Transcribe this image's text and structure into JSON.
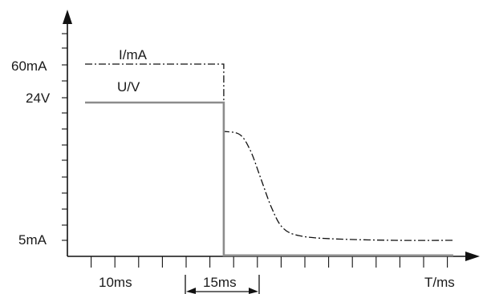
{
  "chart_data": {
    "type": "line",
    "xlabel": "T/ms",
    "ylabel": "",
    "y_tick_labels": [
      {
        "value": 60,
        "label": "60mA"
      },
      {
        "value": 48,
        "label": "24V"
      },
      {
        "value": 5,
        "label": "5mA"
      }
    ],
    "x_annotations": [
      {
        "label": "10ms"
      },
      {
        "label": "15ms"
      }
    ],
    "series": [
      {
        "name": "I/mA",
        "style": "dash-dot",
        "color": "#111111",
        "points": [
          [
            0,
            60
          ],
          [
            13,
            60
          ],
          [
            13,
            39
          ],
          [
            14.5,
            38
          ],
          [
            15.5,
            33
          ],
          [
            16.5,
            24
          ],
          [
            17.5,
            15
          ],
          [
            18.5,
            9
          ],
          [
            20,
            6.5
          ],
          [
            23,
            5.5
          ],
          [
            29,
            5
          ],
          [
            34.5,
            5
          ]
        ]
      },
      {
        "name": "U/V",
        "style": "solid",
        "color": "#8c8c8c",
        "points": [
          [
            0,
            48
          ],
          [
            13,
            48
          ],
          [
            13,
            0.3
          ],
          [
            34.5,
            0.3
          ]
        ]
      }
    ],
    "grid": false,
    "legend": "inline labels above lines"
  }
}
